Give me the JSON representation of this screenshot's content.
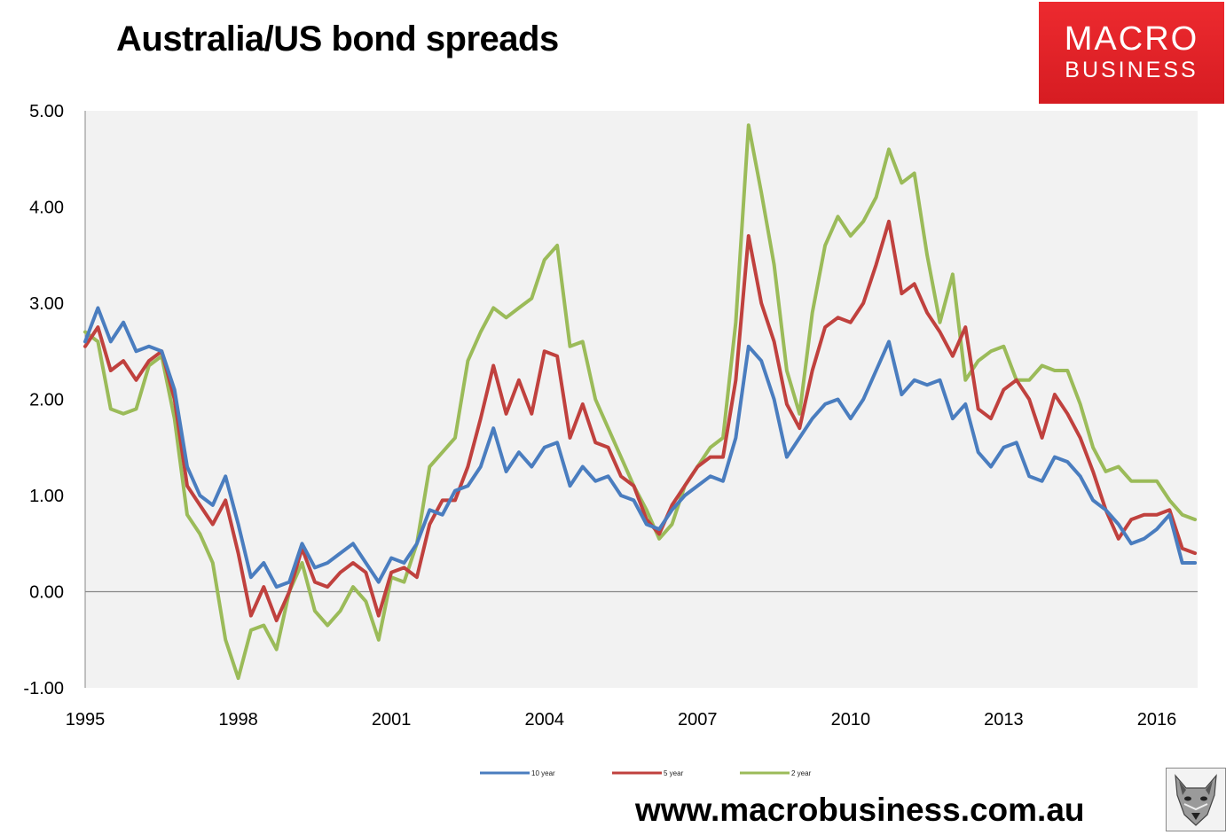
{
  "header": {
    "title": "Australia/US bond spreads"
  },
  "logo": {
    "line1": "MACRO",
    "line2": "BUSINESS"
  },
  "footer": {
    "url": "www.macrobusiness.com.au"
  },
  "colors": {
    "series_10y": "#4a7dbf",
    "series_5y": "#c0413e",
    "series_2y": "#9bbb59",
    "plot_bg": "#f2f2f2",
    "logo_bg": "#e8222b"
  },
  "chart_data": {
    "type": "line",
    "title": "Australia/US bond spreads",
    "xlabel": "",
    "ylabel": "",
    "xlim": [
      1995,
      2016.8
    ],
    "ylim": [
      -1,
      5
    ],
    "x_ticks": [
      "1995",
      "1998",
      "2001",
      "2004",
      "2007",
      "2010",
      "2013",
      "2016"
    ],
    "y_ticks": [
      "-1.00",
      "0.00",
      "1.00",
      "2.00",
      "3.00",
      "4.00",
      "5.00"
    ],
    "grid": false,
    "legend_position": "bottom",
    "series": [
      {
        "name": "10 year",
        "x": [
          1995.0,
          1995.25,
          1995.5,
          1995.75,
          1996.0,
          1996.25,
          1996.5,
          1996.75,
          1997.0,
          1997.25,
          1997.5,
          1997.75,
          1998.0,
          1998.25,
          1998.5,
          1998.75,
          1999.0,
          1999.25,
          1999.5,
          1999.75,
          2000.0,
          2000.25,
          2000.5,
          2000.75,
          2001.0,
          2001.25,
          2001.5,
          2001.75,
          2002.0,
          2002.25,
          2002.5,
          2002.75,
          2003.0,
          2003.25,
          2003.5,
          2003.75,
          2004.0,
          2004.25,
          2004.5,
          2004.75,
          2005.0,
          2005.25,
          2005.5,
          2005.75,
          2006.0,
          2006.25,
          2006.5,
          2006.75,
          2007.0,
          2007.25,
          2007.5,
          2007.75,
          2008.0,
          2008.25,
          2008.5,
          2008.75,
          2009.0,
          2009.25,
          2009.5,
          2009.75,
          2010.0,
          2010.25,
          2010.5,
          2010.75,
          2011.0,
          2011.25,
          2011.5,
          2011.75,
          2012.0,
          2012.25,
          2012.5,
          2012.75,
          2013.0,
          2013.25,
          2013.5,
          2013.75,
          2014.0,
          2014.25,
          2014.5,
          2014.75,
          2015.0,
          2015.25,
          2015.5,
          2015.75,
          2016.0,
          2016.25,
          2016.5,
          2016.75
        ],
        "values": [
          2.6,
          2.95,
          2.6,
          2.8,
          2.5,
          2.55,
          2.5,
          2.1,
          1.3,
          1.0,
          0.9,
          1.2,
          0.7,
          0.15,
          0.3,
          0.05,
          0.1,
          0.5,
          0.25,
          0.3,
          0.4,
          0.5,
          0.3,
          0.1,
          0.35,
          0.3,
          0.5,
          0.85,
          0.8,
          1.05,
          1.1,
          1.3,
          1.7,
          1.25,
          1.45,
          1.3,
          1.5,
          1.55,
          1.1,
          1.3,
          1.15,
          1.2,
          1.0,
          0.95,
          0.7,
          0.65,
          0.85,
          1.0,
          1.1,
          1.2,
          1.15,
          1.6,
          2.55,
          2.4,
          2.0,
          1.4,
          1.6,
          1.8,
          1.95,
          2.0,
          1.8,
          2.0,
          2.3,
          2.6,
          2.05,
          2.2,
          2.15,
          2.2,
          1.8,
          1.95,
          1.45,
          1.3,
          1.5,
          1.55,
          1.2,
          1.15,
          1.4,
          1.35,
          1.2,
          0.95,
          0.85,
          0.7,
          0.5,
          0.55,
          0.65,
          0.8,
          0.3,
          0.3
        ],
        "color": "#4a7dbf"
      },
      {
        "name": "5 year",
        "x": [
          1995.0,
          1995.25,
          1995.5,
          1995.75,
          1996.0,
          1996.25,
          1996.5,
          1996.75,
          1997.0,
          1997.25,
          1997.5,
          1997.75,
          1998.0,
          1998.25,
          1998.5,
          1998.75,
          1999.0,
          1999.25,
          1999.5,
          1999.75,
          2000.0,
          2000.25,
          2000.5,
          2000.75,
          2001.0,
          2001.25,
          2001.5,
          2001.75,
          2002.0,
          2002.25,
          2002.5,
          2002.75,
          2003.0,
          2003.25,
          2003.5,
          2003.75,
          2004.0,
          2004.25,
          2004.5,
          2004.75,
          2005.0,
          2005.25,
          2005.5,
          2005.75,
          2006.0,
          2006.25,
          2006.5,
          2006.75,
          2007.0,
          2007.25,
          2007.5,
          2007.75,
          2008.0,
          2008.25,
          2008.5,
          2008.75,
          2009.0,
          2009.25,
          2009.5,
          2009.75,
          2010.0,
          2010.25,
          2010.5,
          2010.75,
          2011.0,
          2011.25,
          2011.5,
          2011.75,
          2012.0,
          2012.25,
          2012.5,
          2012.75,
          2013.0,
          2013.25,
          2013.5,
          2013.75,
          2014.0,
          2014.25,
          2014.5,
          2014.75,
          2015.0,
          2015.25,
          2015.5,
          2015.75,
          2016.0,
          2016.25,
          2016.5,
          2016.75
        ],
        "values": [
          2.55,
          2.75,
          2.3,
          2.4,
          2.2,
          2.4,
          2.5,
          2.0,
          1.1,
          0.9,
          0.7,
          0.95,
          0.4,
          -0.25,
          0.05,
          -0.3,
          0.0,
          0.45,
          0.1,
          0.05,
          0.2,
          0.3,
          0.2,
          -0.25,
          0.2,
          0.25,
          0.15,
          0.7,
          0.95,
          0.95,
          1.3,
          1.8,
          2.35,
          1.85,
          2.2,
          1.85,
          2.5,
          2.45,
          1.6,
          1.95,
          1.55,
          1.5,
          1.2,
          1.1,
          0.75,
          0.6,
          0.9,
          1.1,
          1.3,
          1.4,
          1.4,
          2.2,
          3.7,
          3.0,
          2.6,
          1.95,
          1.7,
          2.3,
          2.75,
          2.85,
          2.8,
          3.0,
          3.4,
          3.85,
          3.1,
          3.2,
          2.9,
          2.7,
          2.45,
          2.75,
          1.9,
          1.8,
          2.1,
          2.2,
          2.0,
          1.6,
          2.05,
          1.85,
          1.6,
          1.25,
          0.85,
          0.55,
          0.75,
          0.8,
          0.8,
          0.85,
          0.45,
          0.4
        ],
        "color": "#c0413e"
      },
      {
        "name": "2 year",
        "x": [
          1995.0,
          1995.25,
          1995.5,
          1995.75,
          1996.0,
          1996.25,
          1996.5,
          1996.75,
          1997.0,
          1997.25,
          1997.5,
          1997.75,
          1998.0,
          1998.25,
          1998.5,
          1998.75,
          1999.0,
          1999.25,
          1999.5,
          1999.75,
          2000.0,
          2000.25,
          2000.5,
          2000.75,
          2001.0,
          2001.25,
          2001.5,
          2001.75,
          2002.0,
          2002.25,
          2002.5,
          2002.75,
          2003.0,
          2003.25,
          2003.5,
          2003.75,
          2004.0,
          2004.25,
          2004.5,
          2004.75,
          2005.0,
          2005.25,
          2005.5,
          2005.75,
          2006.0,
          2006.25,
          2006.5,
          2006.75,
          2007.0,
          2007.25,
          2007.5,
          2007.75,
          2008.0,
          2008.25,
          2008.5,
          2008.75,
          2009.0,
          2009.25,
          2009.5,
          2009.75,
          2010.0,
          2010.25,
          2010.5,
          2010.75,
          2011.0,
          2011.25,
          2011.5,
          2011.75,
          2012.0,
          2012.25,
          2012.5,
          2012.75,
          2013.0,
          2013.25,
          2013.5,
          2013.75,
          2014.0,
          2014.25,
          2014.5,
          2014.75,
          2015.0,
          2015.25,
          2015.5,
          2015.75,
          2016.0,
          2016.25,
          2016.5,
          2016.75
        ],
        "values": [
          2.7,
          2.6,
          1.9,
          1.85,
          1.9,
          2.35,
          2.45,
          1.8,
          0.8,
          0.6,
          0.3,
          -0.5,
          -0.9,
          -0.4,
          -0.35,
          -0.6,
          0.0,
          0.3,
          -0.2,
          -0.35,
          -0.2,
          0.05,
          -0.1,
          -0.5,
          0.15,
          0.1,
          0.5,
          1.3,
          1.45,
          1.6,
          2.4,
          2.7,
          2.95,
          2.85,
          2.95,
          3.05,
          3.45,
          3.6,
          2.55,
          2.6,
          2.0,
          1.7,
          1.4,
          1.1,
          0.85,
          0.55,
          0.7,
          1.1,
          1.3,
          1.5,
          1.6,
          2.8,
          4.85,
          4.15,
          3.4,
          2.3,
          1.85,
          2.9,
          3.6,
          3.9,
          3.7,
          3.85,
          4.1,
          4.6,
          4.25,
          4.35,
          3.5,
          2.8,
          3.3,
          2.2,
          2.4,
          2.5,
          2.55,
          2.2,
          2.2,
          2.35,
          2.3,
          2.3,
          1.95,
          1.5,
          1.25,
          1.3,
          1.15,
          1.15,
          1.15,
          0.95,
          0.8,
          0.75
        ],
        "color": "#9bbb59"
      }
    ]
  }
}
